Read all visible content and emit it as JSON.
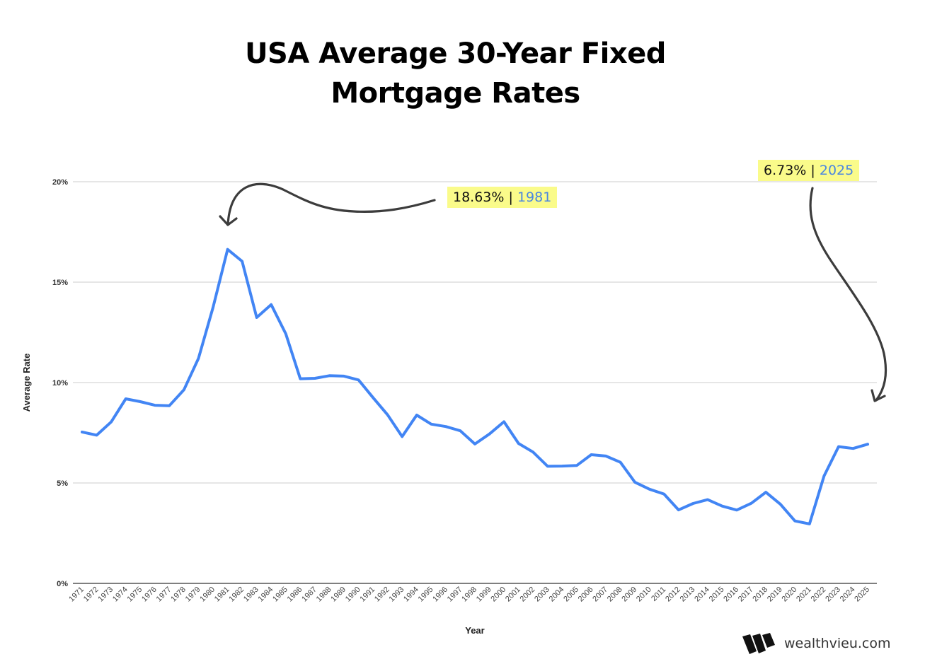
{
  "title": {
    "line1": "USA Average 30-Year Fixed",
    "line2": "Mortgage Rates"
  },
  "annotations": [
    {
      "value": "18.63%",
      "separator": "|",
      "year": "1981"
    },
    {
      "value": "6.73%",
      "separator": "|",
      "year": "2025"
    }
  ],
  "brand": {
    "name": "wealthvieu.com",
    "icon": "wealthvieu-w-logo-icon"
  },
  "colors": {
    "line": "#4285f4",
    "highlight": "#fafb8a",
    "year_text": "#4a86e0",
    "arrow": "#3c3c3c",
    "grid": "#cccccc"
  },
  "chart_data": {
    "type": "line",
    "title": "USA Average 30-Year Fixed Mortgage Rates",
    "xlabel": "Year",
    "ylabel": "Average Rate",
    "ylim": [
      0,
      20
    ],
    "yticks": [
      "0%",
      "5%",
      "10%",
      "15%",
      "20%"
    ],
    "grid": true,
    "legend": "none",
    "x": [
      "1971",
      "1972",
      "1973",
      "1974",
      "1975",
      "1976",
      "1977",
      "1978",
      "1979",
      "1980",
      "1981",
      "1982",
      "1983",
      "1984",
      "1985",
      "1986",
      "1987",
      "1988",
      "1989",
      "1990",
      "1991",
      "1992",
      "1993",
      "1994",
      "1995",
      "1996",
      "1997",
      "1998",
      "1999",
      "2000",
      "2001",
      "2002",
      "2003",
      "2004",
      "2005",
      "2006",
      "2007",
      "2008",
      "2009",
      "2010",
      "2011",
      "2012",
      "2013",
      "2014",
      "2015",
      "2016",
      "2017",
      "2018",
      "2019",
      "2020",
      "2021",
      "2022",
      "2023",
      "2024",
      "2025"
    ],
    "series": [
      {
        "name": "Average Rate",
        "values": [
          7.54,
          7.38,
          8.04,
          9.19,
          9.05,
          8.87,
          8.85,
          9.64,
          11.2,
          13.74,
          16.63,
          16.04,
          13.24,
          13.88,
          12.43,
          10.19,
          10.21,
          10.34,
          10.32,
          10.13,
          9.25,
          8.39,
          7.31,
          8.38,
          7.93,
          7.81,
          7.6,
          6.94,
          7.44,
          8.05,
          6.97,
          6.54,
          5.83,
          5.84,
          5.87,
          6.41,
          6.34,
          6.03,
          5.04,
          4.69,
          4.45,
          3.66,
          3.98,
          4.17,
          3.85,
          3.65,
          3.99,
          4.54,
          3.94,
          3.11,
          2.96,
          5.34,
          6.81,
          6.72,
          6.93
        ]
      }
    ],
    "annotations": [
      {
        "text": "18.63% | 1981",
        "target_year": "1981"
      },
      {
        "text": "6.73% | 2025",
        "target_year": "2025"
      }
    ]
  }
}
